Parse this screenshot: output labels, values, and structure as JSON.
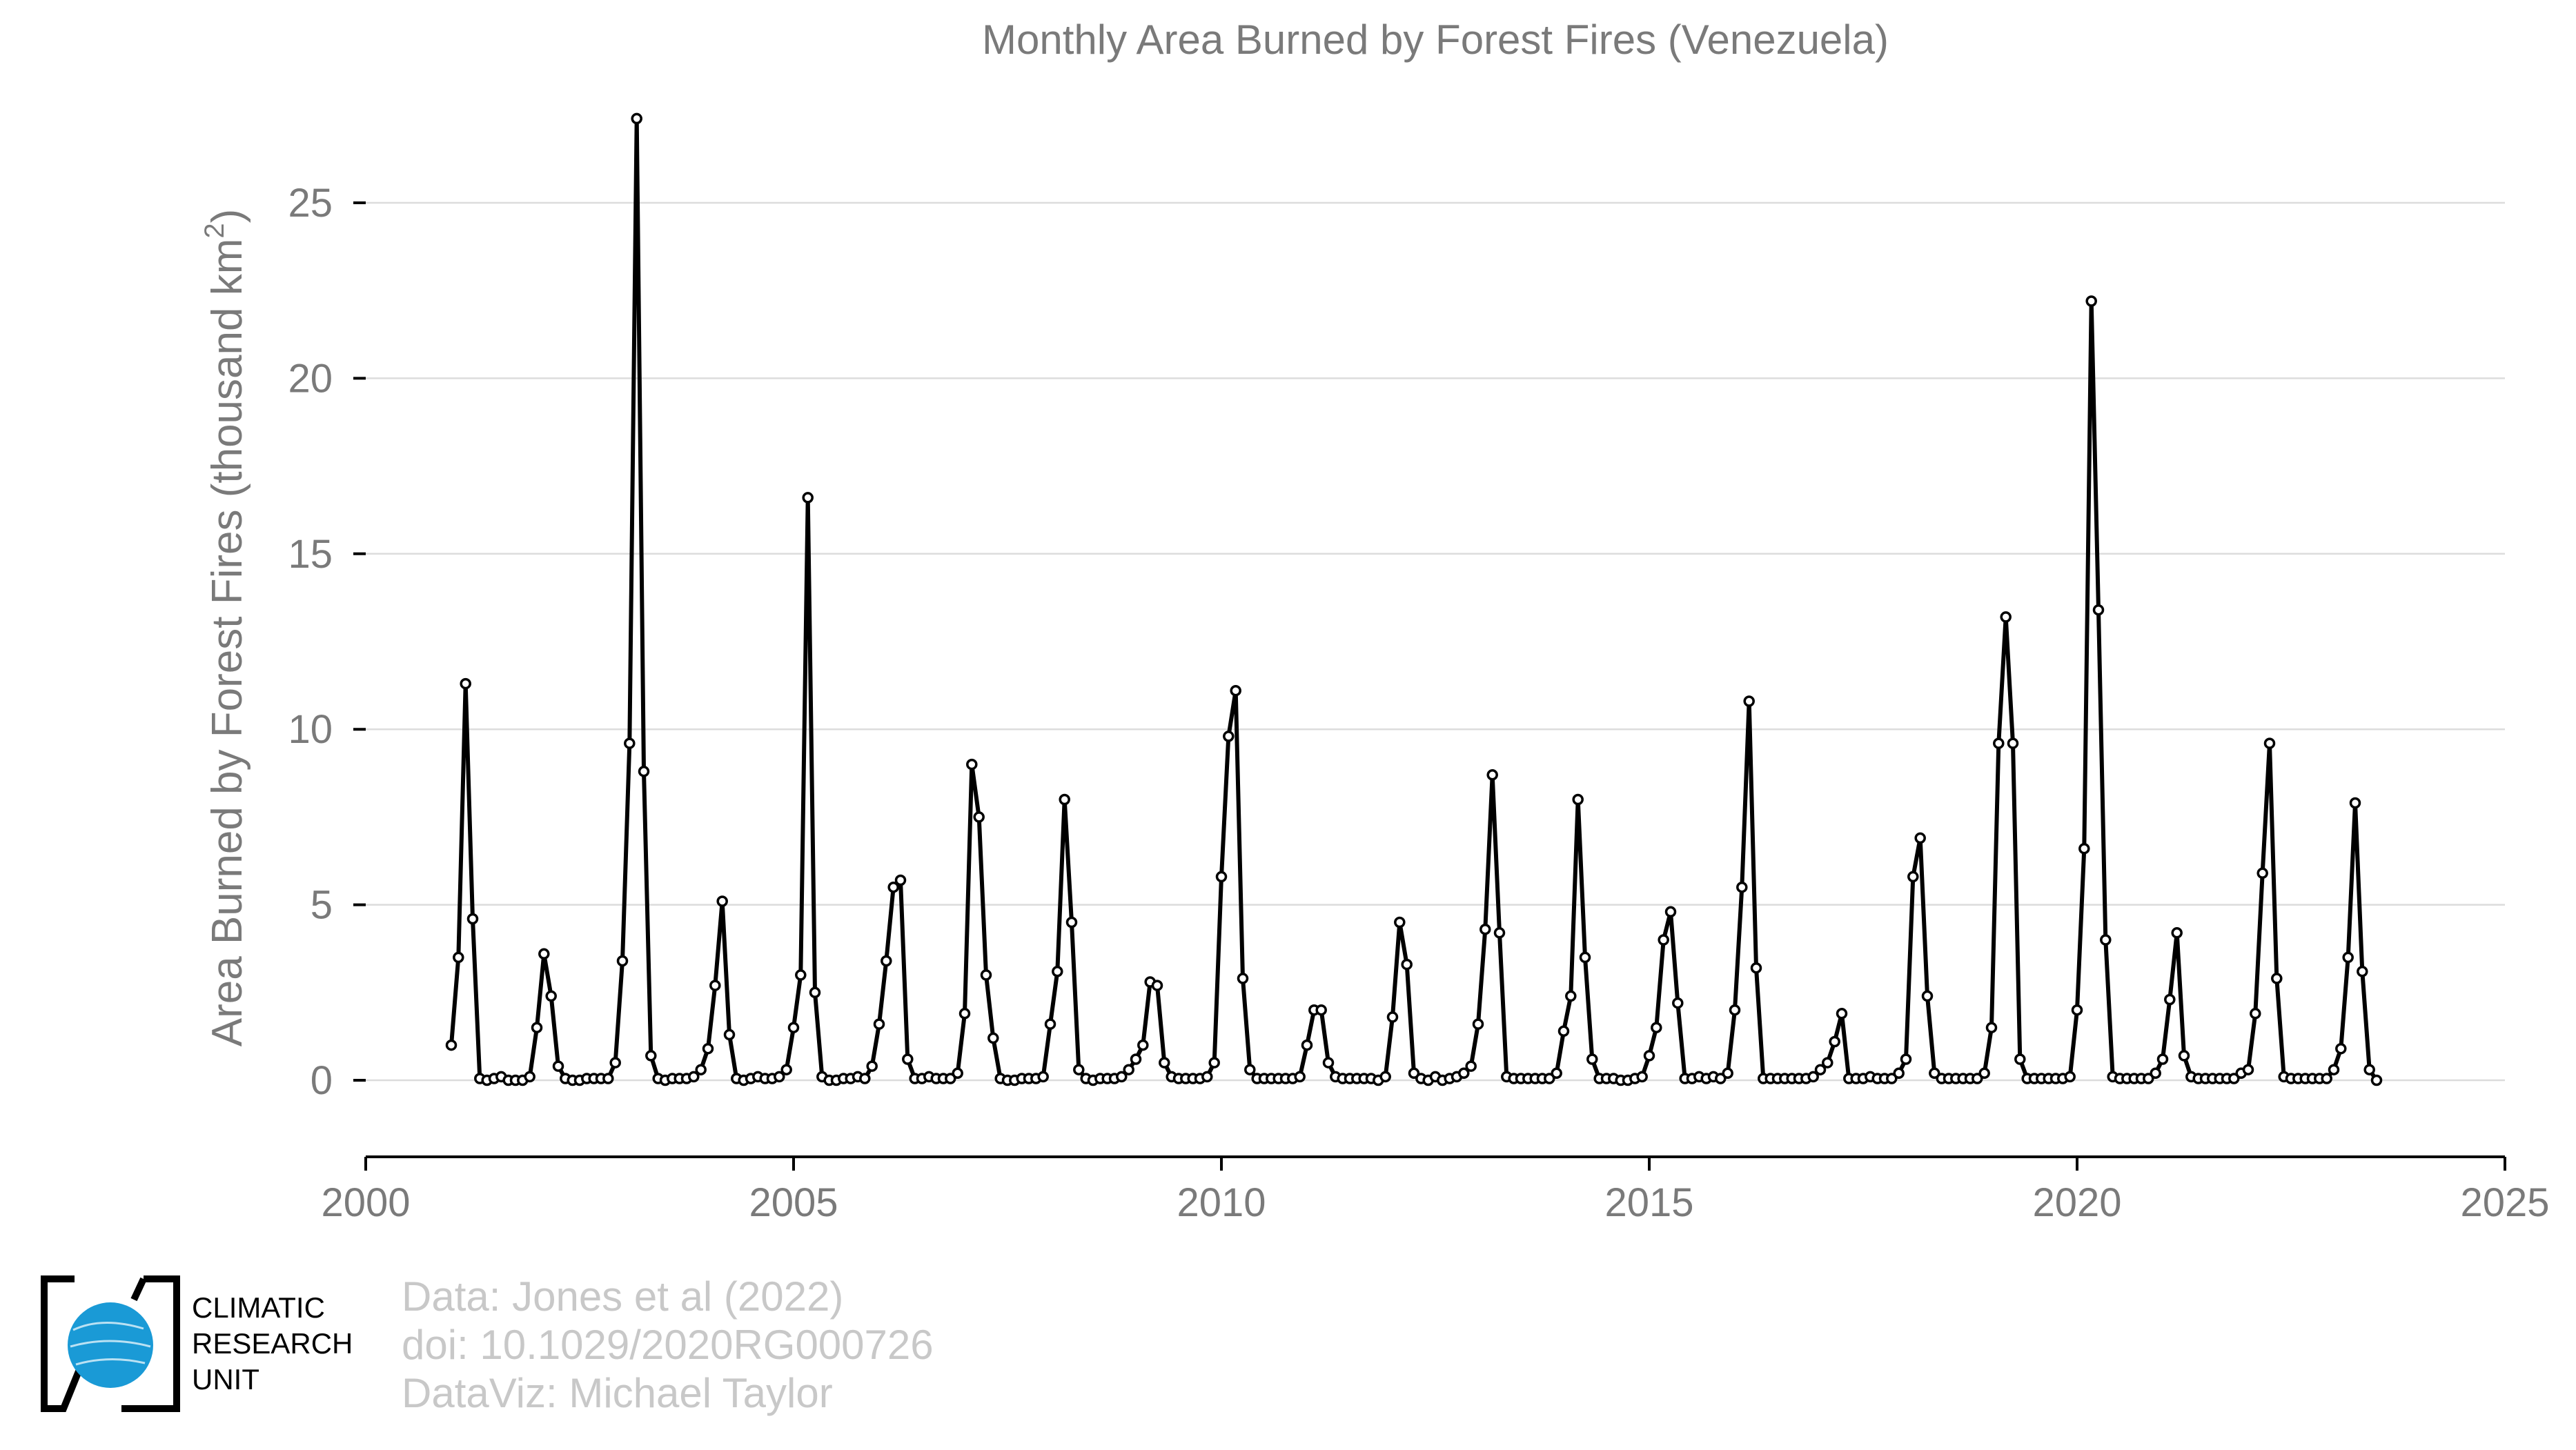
{
  "chart_data": {
    "type": "line",
    "title": "Monthly Area Burned by Forest Fires (Venezuela)",
    "ylabel_main": "Area Burned by Forest Fires (thousand km",
    "ylabel_sup": "2",
    "ylabel_close": ")",
    "xlim": [
      2000,
      2025
    ],
    "ylim": [
      -2.2,
      27.5
    ],
    "xticks": [
      2000,
      2005,
      2010,
      2015,
      2020,
      2025
    ],
    "yticks": [
      0,
      5,
      10,
      15,
      20,
      25
    ],
    "grid": "horizontal",
    "line_color": "#000000",
    "marker_fill": "#ffffff",
    "start_year": 2001,
    "series": [
      {
        "values": [
          1.0,
          3.5,
          11.3,
          4.6,
          0.05,
          0.0,
          0.05,
          0.1,
          0.0,
          0.0,
          0.0,
          0.1,
          1.5,
          3.6,
          2.4,
          0.4,
          0.05,
          0.0,
          0.0,
          0.05,
          0.05,
          0.05,
          0.05,
          0.5,
          3.4,
          9.6,
          27.4,
          8.8,
          0.7,
          0.05,
          0.0,
          0.05,
          0.05,
          0.05,
          0.1,
          0.3,
          0.9,
          2.7,
          5.1,
          1.3,
          0.05,
          0.0,
          0.05,
          0.1,
          0.05,
          0.05,
          0.1,
          0.3,
          1.5,
          3.0,
          16.6,
          2.5,
          0.1,
          0.0,
          0.0,
          0.05,
          0.05,
          0.1,
          0.05,
          0.4,
          1.6,
          3.4,
          5.5,
          5.7,
          0.6,
          0.05,
          0.05,
          0.1,
          0.05,
          0.05,
          0.05,
          0.2,
          1.9,
          9.0,
          7.5,
          3.0,
          1.2,
          0.05,
          0.0,
          0.0,
          0.05,
          0.05,
          0.05,
          0.1,
          1.6,
          3.1,
          8.0,
          4.5,
          0.3,
          0.05,
          0.0,
          0.05,
          0.05,
          0.05,
          0.1,
          0.3,
          0.6,
          1.0,
          2.8,
          2.7,
          0.5,
          0.1,
          0.05,
          0.05,
          0.05,
          0.05,
          0.1,
          0.5,
          5.8,
          9.8,
          11.1,
          2.9,
          0.3,
          0.05,
          0.05,
          0.05,
          0.05,
          0.05,
          0.05,
          0.1,
          1.0,
          2.0,
          2.0,
          0.5,
          0.1,
          0.05,
          0.05,
          0.05,
          0.05,
          0.05,
          0.0,
          0.1,
          1.8,
          4.5,
          3.3,
          0.2,
          0.05,
          0.0,
          0.1,
          0.0,
          0.05,
          0.1,
          0.2,
          0.4,
          1.6,
          4.3,
          8.7,
          4.2,
          0.1,
          0.05,
          0.05,
          0.05,
          0.05,
          0.05,
          0.05,
          0.2,
          1.4,
          2.4,
          8.0,
          3.5,
          0.6,
          0.05,
          0.05,
          0.05,
          0.0,
          0.0,
          0.05,
          0.1,
          0.7,
          1.5,
          4.0,
          4.8,
          2.2,
          0.05,
          0.05,
          0.1,
          0.05,
          0.1,
          0.05,
          0.2,
          2.0,
          5.5,
          10.8,
          3.2,
          0.05,
          0.05,
          0.05,
          0.05,
          0.05,
          0.05,
          0.05,
          0.1,
          0.3,
          0.5,
          1.1,
          1.9,
          0.05,
          0.05,
          0.05,
          0.1,
          0.05,
          0.05,
          0.05,
          0.2,
          0.6,
          5.8,
          6.9,
          2.4,
          0.2,
          0.05,
          0.05,
          0.05,
          0.05,
          0.05,
          0.05,
          0.2,
          1.5,
          9.6,
          13.2,
          9.6,
          0.6,
          0.05,
          0.05,
          0.05,
          0.05,
          0.05,
          0.05,
          0.1,
          2.0,
          6.6,
          22.2,
          13.4,
          4.0,
          0.1,
          0.05,
          0.05,
          0.05,
          0.05,
          0.05,
          0.2,
          0.6,
          2.3,
          4.2,
          0.7,
          0.1,
          0.05,
          0.05,
          0.05,
          0.05,
          0.05,
          0.05,
          0.2,
          0.3,
          1.9,
          5.9,
          9.6,
          2.9,
          0.1,
          0.05,
          0.05,
          0.05,
          0.05,
          0.05,
          0.05,
          0.3,
          0.9,
          3.5,
          7.9,
          3.1,
          0.3,
          0.0
        ]
      }
    ]
  },
  "logo": {
    "line1": "CLIMATIC",
    "line2": "RESEARCH",
    "line3": "UNIT",
    "circle_color": "#1a9ad6"
  },
  "credits": {
    "line1": "Data: Jones et al (2022)",
    "line2": "doi: 10.1029/2020RG000726",
    "line3": "DataViz: Michael Taylor"
  }
}
